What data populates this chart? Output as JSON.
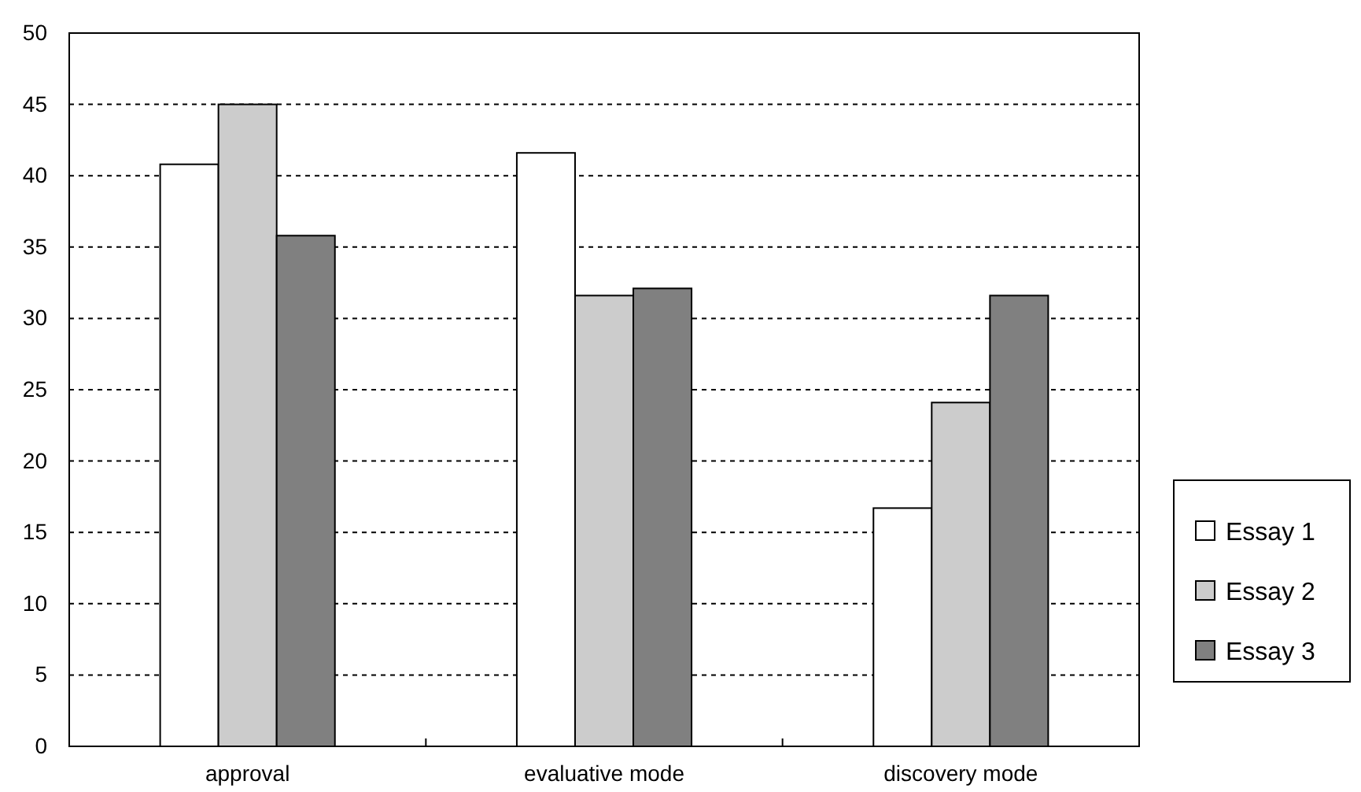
{
  "chart_data": {
    "type": "bar",
    "categories": [
      "approval",
      "evaluative mode",
      "discovery mode"
    ],
    "series": [
      {
        "name": "Essay 1",
        "color": "#ffffff",
        "values": [
          40.8,
          41.6,
          16.7
        ]
      },
      {
        "name": "Essay 2",
        "color": "#cccccc",
        "values": [
          45,
          31.6,
          24.1
        ]
      },
      {
        "name": "Essay 3",
        "color": "#808080",
        "values": [
          35.8,
          32.1,
          31.6
        ]
      }
    ],
    "ylim": [
      0,
      50
    ],
    "yticks": [
      0,
      5,
      10,
      15,
      20,
      25,
      30,
      35,
      40,
      45,
      50
    ],
    "grid": "y",
    "legend": "right"
  }
}
